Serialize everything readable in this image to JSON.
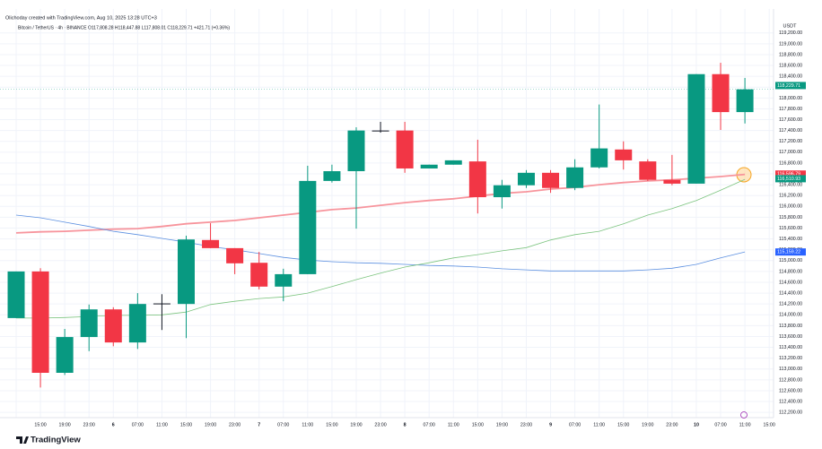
{
  "chart_data": {
    "type": "candlestick",
    "title": "Olichoday created with TradingView.com, Aug 10, 2025 13:28 UTC+3",
    "subtitle": "Bitcoin / TetherUS · 4h · BINANCE  O117,808.28 H118,447.88 L117,808.01 C118,229.71 +421.71 (+0.36%)",
    "y_axis_label": "USDT",
    "brand": "TradingView",
    "categories": [
      null,
      "15:00",
      "19:00",
      "23:00",
      "6",
      "07:00",
      "11:00",
      "15:00",
      "19:00",
      "23:00",
      "7",
      "07:00",
      "11:00",
      "15:00",
      "19:00",
      "23:00",
      "8",
      "07:00",
      "11:00",
      "15:00",
      "19:00",
      "23:00",
      "9",
      "07:00",
      "11:00",
      "15:00",
      "19:00",
      "23:00",
      "10",
      "07:00",
      "11:00",
      "15:00"
    ],
    "open": [
      113940,
      114800,
      112930,
      113590,
      114100,
      113490,
      114200,
      114200,
      115380,
      115230,
      114960,
      114520,
      114750,
      116470,
      116650,
      117400,
      117400,
      116700,
      116770,
      116830,
      116170,
      116390,
      116620,
      116340,
      116720,
      117050,
      116830,
      116490,
      116420,
      118440,
      117740,
      null
    ],
    "high": [
      114800,
      114860,
      113740,
      114190,
      114140,
      114400,
      114380,
      115460,
      115690,
      115230,
      115160,
      114850,
      116750,
      116770,
      117460,
      117560,
      117560,
      116770,
      116850,
      117230,
      116490,
      116670,
      116670,
      116870,
      117880,
      117200,
      116870,
      116950,
      118440,
      118650,
      118370,
      null
    ],
    "low": [
      113940,
      112660,
      112890,
      113330,
      113420,
      113370,
      113720,
      113570,
      115230,
      114750,
      114470,
      114250,
      114750,
      116440,
      115590,
      117360,
      116620,
      116700,
      116770,
      115870,
      115960,
      116340,
      116250,
      116300,
      116700,
      116680,
      116470,
      116390,
      116420,
      117410,
      117530,
      null
    ],
    "close": [
      114800,
      112930,
      113590,
      114100,
      113490,
      114200,
      114210,
      115390,
      115230,
      114950,
      114520,
      114750,
      116470,
      116650,
      117400,
      117400,
      116700,
      116770,
      116850,
      116170,
      116390,
      116620,
      116340,
      116720,
      117070,
      116850,
      116490,
      116420,
      118440,
      117740,
      118160,
      null
    ],
    "up_color": "#089981",
    "down_color": "#f23645",
    "series": [
      {
        "color": "#f7949c",
        "values": [
          115510,
          115530,
          115540,
          115560,
          115580,
          115590,
          115630,
          115680,
          115710,
          115740,
          115790,
          115840,
          115890,
          115940,
          115970,
          116020,
          116070,
          116110,
          116140,
          116190,
          116240,
          116270,
          116320,
          116350,
          116400,
          116440,
          116470,
          116490,
          116520,
          116550,
          116590,
          null
        ]
      },
      {
        "color": "#5b8fe0",
        "values": [
          115840,
          115790,
          115710,
          115630,
          115540,
          115480,
          115410,
          115340,
          115260,
          115200,
          115130,
          115060,
          115010,
          114980,
          114960,
          114950,
          114930,
          114910,
          114900,
          114880,
          114850,
          114830,
          114810,
          114810,
          114810,
          114810,
          114830,
          114860,
          114930,
          115050,
          115160,
          null
        ]
      },
      {
        "color": "#7cc47f",
        "values": [
          113940,
          113940,
          113950,
          113970,
          113990,
          113990,
          114000,
          114050,
          114190,
          114250,
          114300,
          114330,
          114400,
          114520,
          114650,
          114770,
          114880,
          114960,
          115050,
          115110,
          115180,
          115240,
          115380,
          115480,
          115540,
          115680,
          115840,
          115960,
          116110,
          116300,
          116500,
          null
        ]
      }
    ],
    "price_tags": [
      {
        "label": "118,229.71",
        "value": 118229.71,
        "color": "#089981"
      },
      {
        "label": "116,596.79",
        "value": 116596.79,
        "color": "#f23645"
      },
      {
        "label": "116,510.93",
        "value": 116510.93,
        "color": "#089981"
      },
      {
        "label": "115,159.22",
        "value": 115159.22,
        "color": "#2962ff"
      }
    ],
    "ylim": [
      112070,
      119560
    ],
    "yticks": [
      {
        "value": 112200,
        "label": "112,200.00"
      },
      {
        "value": 112400,
        "label": "112,400.00"
      },
      {
        "value": 112600,
        "label": "112,600.00"
      },
      {
        "value": 112800,
        "label": "112,800.00"
      },
      {
        "value": 113000,
        "label": "113,000.00"
      },
      {
        "value": 113200,
        "label": "113,200.00"
      },
      {
        "value": 113400,
        "label": "113,400.00"
      },
      {
        "value": 113600,
        "label": "113,600.00"
      },
      {
        "value": 113800,
        "label": "113,800.00"
      },
      {
        "value": 114000,
        "label": "114,000.00"
      },
      {
        "value": 114200,
        "label": "114,200.00"
      },
      {
        "value": 114400,
        "label": "114,400.00"
      },
      {
        "value": 114600,
        "label": "114,600.00"
      },
      {
        "value": 114800,
        "label": "114,800.00"
      },
      {
        "value": 115000,
        "label": "115,000.00"
      },
      {
        "value": 115200,
        "label": "115,200.00"
      },
      {
        "value": 115400,
        "label": "115,400.00"
      },
      {
        "value": 115600,
        "label": "115,600.00"
      },
      {
        "value": 115800,
        "label": "115,800.00"
      },
      {
        "value": 116000,
        "label": "116,000.00"
      },
      {
        "value": 116200,
        "label": "116,200.00"
      },
      {
        "value": 116400,
        "label": "116,400.00"
      },
      {
        "value": 116600,
        "label": "116,600.00"
      },
      {
        "value": 116800,
        "label": "116,800.00"
      },
      {
        "value": 117000,
        "label": "117,000.00"
      },
      {
        "value": 117200,
        "label": "117,200.00"
      },
      {
        "value": 117400,
        "label": "117,400.00"
      },
      {
        "value": 117600,
        "label": "117,600.00"
      },
      {
        "value": 117800,
        "label": "117,800.00"
      },
      {
        "value": 118000,
        "label": "118,000.00"
      },
      {
        "value": 118200,
        "label": "118,200.00"
      },
      {
        "value": 118400,
        "label": "118,400.00"
      },
      {
        "value": 118600,
        "label": "118,600.00"
      },
      {
        "value": 118800,
        "label": "118,800.00"
      },
      {
        "value": 119000,
        "label": "119,000.00"
      },
      {
        "value": 119200,
        "label": "119,200.00"
      }
    ],
    "grid": true
  }
}
